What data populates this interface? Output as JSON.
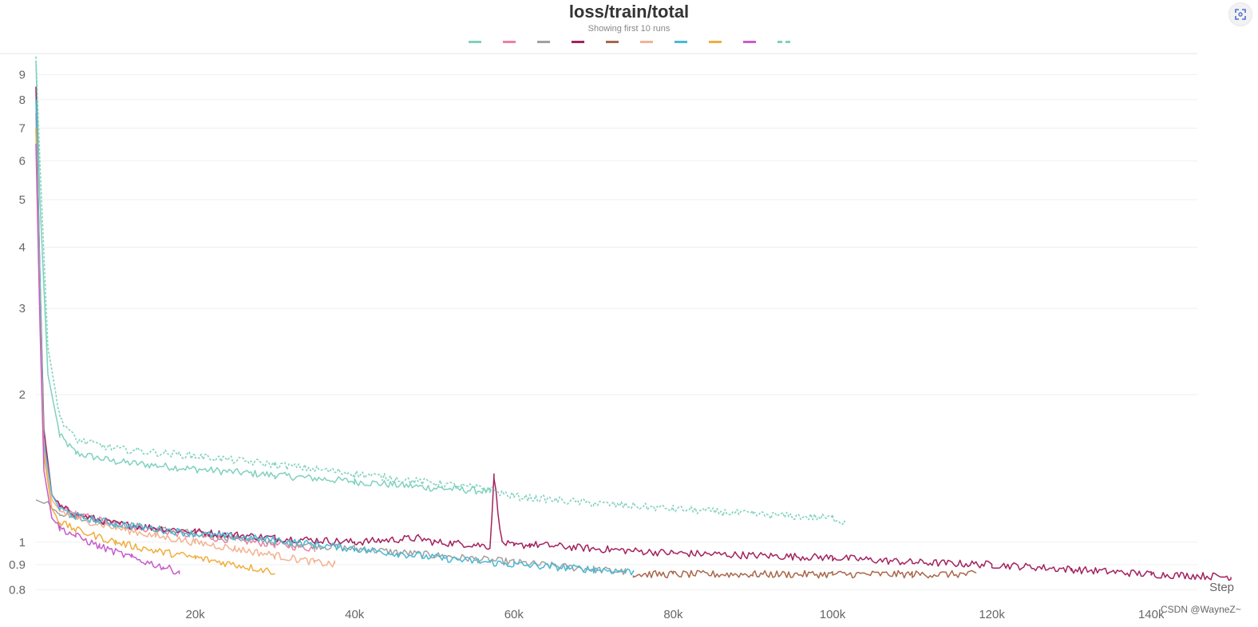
{
  "header": {
    "title": "loss/train/total",
    "subtitle": "Showing first 10 runs"
  },
  "watermark": "CSDN @WayneZ~",
  "chart_data": {
    "type": "line",
    "title": "loss/train/total",
    "subtitle": "Showing first 10 runs",
    "xlabel": "Step",
    "ylabel": "",
    "yscale": "log",
    "xlim": [
      0,
      151000
    ],
    "ylim": [
      0.78,
      9.9
    ],
    "grid": true,
    "legend": "top-center",
    "xticks": [
      {
        "value": 20000,
        "label": "20k"
      },
      {
        "value": 40000,
        "label": "40k"
      },
      {
        "value": 60000,
        "label": "60k"
      },
      {
        "value": 80000,
        "label": "80k"
      },
      {
        "value": 100000,
        "label": "100k"
      },
      {
        "value": 120000,
        "label": "120k"
      },
      {
        "value": 140000,
        "label": "140k"
      }
    ],
    "yticks": [
      {
        "value": 0.8,
        "label": "0.8"
      },
      {
        "value": 0.9,
        "label": "0.9"
      },
      {
        "value": 1,
        "label": "1"
      },
      {
        "value": 2,
        "label": "2"
      },
      {
        "value": 3,
        "label": "3"
      },
      {
        "value": 4,
        "label": "4"
      },
      {
        "value": 5,
        "label": "5"
      },
      {
        "value": 6,
        "label": "6"
      },
      {
        "value": 7,
        "label": "7"
      },
      {
        "value": 8,
        "label": "8"
      },
      {
        "value": 9,
        "label": "9"
      }
    ],
    "series": [
      {
        "color": "#7fd1bd",
        "dashed": false,
        "x": [
          0,
          500,
          1500,
          3000,
          5000,
          10000,
          20000,
          30000,
          40000,
          50000,
          57000
        ],
        "y": [
          9.6,
          5.0,
          2.2,
          1.65,
          1.52,
          1.46,
          1.41,
          1.37,
          1.33,
          1.29,
          1.27
        ]
      },
      {
        "color": "#f07fa0",
        "dashed": false,
        "x": [
          0,
          500,
          1000,
          2000,
          3000,
          5000,
          10000,
          15000,
          20000,
          25000,
          30000,
          35000
        ],
        "y": [
          7.5,
          3.0,
          1.6,
          1.25,
          1.18,
          1.14,
          1.09,
          1.06,
          1.03,
          1.01,
          0.99,
          0.97
        ]
      },
      {
        "color": "#a0a0a0",
        "dashed": false,
        "x": [
          0,
          1000,
          1500,
          2000,
          3000,
          5000,
          10000,
          20000,
          30000,
          40000,
          50000,
          60000,
          70000,
          74000
        ],
        "y": [
          1.22,
          1.2,
          1.21,
          1.17,
          1.15,
          1.13,
          1.09,
          1.04,
          1.0,
          0.97,
          0.94,
          0.91,
          0.88,
          0.87
        ]
      },
      {
        "color": "#a3225e",
        "dashed": false,
        "x": [
          0,
          500,
          1000,
          2000,
          3000,
          5000,
          10000,
          20000,
          30000,
          40000,
          48000,
          50000,
          55000,
          57000,
          57500,
          58500,
          60000,
          62000,
          70000,
          80000,
          90000,
          100000,
          110000,
          120000,
          130000,
          140000,
          150000
        ],
        "y": [
          8.5,
          3.5,
          1.7,
          1.25,
          1.18,
          1.14,
          1.09,
          1.05,
          1.02,
          1.0,
          1.02,
          1.0,
          0.99,
          0.98,
          1.36,
          1.0,
          0.98,
          0.99,
          0.97,
          0.95,
          0.94,
          0.93,
          0.91,
          0.9,
          0.88,
          0.86,
          0.85
        ]
      },
      {
        "color": "#a8674a",
        "dashed": false,
        "x": [
          75000,
          80000,
          90000,
          100000,
          110000,
          118000
        ],
        "y": [
          0.86,
          0.86,
          0.86,
          0.86,
          0.86,
          0.86
        ]
      },
      {
        "color": "#f2b391",
        "dashed": false,
        "x": [
          0,
          500,
          1000,
          2000,
          3000,
          5000,
          10000,
          15000,
          20000,
          25000,
          30000,
          35000,
          37500
        ],
        "y": [
          7.0,
          3.0,
          1.55,
          1.22,
          1.16,
          1.12,
          1.07,
          1.03,
          1.0,
          0.97,
          0.94,
          0.91,
          0.9
        ]
      },
      {
        "color": "#4ab9d6",
        "dashed": false,
        "x": [
          0,
          500,
          1000,
          2000,
          3000,
          5000,
          10000,
          20000,
          30000,
          40000,
          50000,
          60000,
          70000,
          75000
        ],
        "y": [
          8.0,
          3.5,
          1.6,
          1.25,
          1.17,
          1.13,
          1.09,
          1.04,
          1.01,
          0.97,
          0.93,
          0.9,
          0.88,
          0.87
        ]
      },
      {
        "color": "#f0ad3e",
        "dashed": false,
        "x": [
          0,
          500,
          1000,
          2000,
          3000,
          5000,
          10000,
          15000,
          20000,
          25000,
          30000
        ],
        "y": [
          7.0,
          3.0,
          1.5,
          1.17,
          1.1,
          1.06,
          1.0,
          0.96,
          0.93,
          0.9,
          0.87
        ]
      },
      {
        "color": "#c75ccc",
        "dashed": false,
        "x": [
          0,
          500,
          1000,
          2000,
          3000,
          5000,
          8000,
          12000,
          16000,
          18000
        ],
        "y": [
          6.5,
          2.8,
          1.4,
          1.12,
          1.07,
          1.03,
          0.98,
          0.93,
          0.89,
          0.87
        ]
      },
      {
        "color": "#7fd1bd",
        "dashed": true,
        "x": [
          0,
          500,
          1500,
          3000,
          5000,
          10000,
          20000,
          30000,
          40000,
          50000,
          57000,
          60000,
          70000,
          80000,
          90000,
          100000,
          101500
        ],
        "y": [
          9.8,
          6.0,
          2.5,
          1.8,
          1.62,
          1.55,
          1.5,
          1.44,
          1.38,
          1.32,
          1.28,
          1.24,
          1.2,
          1.17,
          1.14,
          1.12,
          1.1
        ]
      }
    ]
  }
}
